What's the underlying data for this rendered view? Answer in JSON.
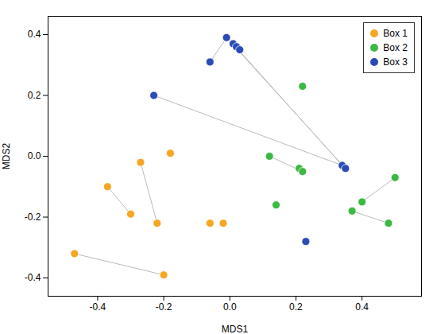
{
  "chart_data": {
    "type": "scatter",
    "xlabel": "MDS1",
    "ylabel": "MDS2",
    "xlim": [
      -0.55,
      0.58
    ],
    "ylim": [
      -0.46,
      0.46
    ],
    "xticks": [
      -0.4,
      -0.2,
      {
        "value": 0,
        "label": "0.0"
      },
      0.2,
      0.4
    ],
    "yticks": [
      -0.4,
      -0.2,
      {
        "value": 0,
        "label": "0.0"
      },
      0.2,
      0.4
    ],
    "grid": false,
    "legend": "upper right",
    "segment_color": "#BBBBBB",
    "series": [
      {
        "name": "Box 1",
        "color": "#F5A623",
        "x": [
          -0.47,
          -0.2,
          -0.37,
          -0.3,
          -0.27,
          -0.18,
          -0.22,
          -0.06,
          -0.02
        ],
        "values": [
          -0.32,
          -0.39,
          -0.1,
          -0.19,
          -0.02,
          0.01,
          -0.22,
          -0.22,
          -0.22
        ],
        "segments": [
          [
            [
              -0.47,
              -0.32
            ],
            [
              -0.2,
              -0.39
            ]
          ],
          [
            [
              -0.37,
              -0.1
            ],
            [
              -0.3,
              -0.19
            ]
          ],
          [
            [
              -0.27,
              -0.02
            ],
            [
              -0.22,
              -0.22
            ]
          ]
        ]
      },
      {
        "name": "Box 2",
        "color": "#3DB843",
        "x": [
          0.12,
          0.14,
          0.22,
          0.21,
          0.22,
          0.37,
          0.4,
          0.48,
          0.5
        ],
        "values": [
          0.0,
          -0.16,
          0.23,
          -0.04,
          -0.05,
          -0.18,
          -0.15,
          -0.22,
          -0.07
        ],
        "segments": [
          [
            [
              0.12,
              0.0
            ],
            [
              0.22,
              -0.05
            ]
          ],
          [
            [
              0.37,
              -0.18
            ],
            [
              0.48,
              -0.22
            ]
          ],
          [
            [
              0.4,
              -0.15
            ],
            [
              0.5,
              -0.07
            ]
          ]
        ]
      },
      {
        "name": "Box 3",
        "color": "#2B4BB5",
        "x": [
          -0.23,
          -0.06,
          -0.01,
          0.01,
          0.02,
          0.03,
          0.23,
          0.34,
          0.35
        ],
        "values": [
          0.2,
          0.31,
          0.39,
          0.37,
          0.36,
          0.35,
          -0.28,
          -0.03,
          -0.04
        ],
        "segments": [
          [
            [
              -0.06,
              0.31
            ],
            [
              -0.01,
              0.39
            ]
          ],
          [
            [
              -0.01,
              0.39
            ],
            [
              0.01,
              0.37
            ]
          ],
          [
            [
              -0.01,
              0.39
            ],
            [
              0.35,
              -0.04
            ]
          ],
          [
            [
              0.01,
              0.37
            ],
            [
              0.34,
              -0.03
            ]
          ],
          [
            [
              -0.23,
              0.2
            ],
            [
              0.34,
              -0.03
            ]
          ]
        ]
      }
    ]
  }
}
